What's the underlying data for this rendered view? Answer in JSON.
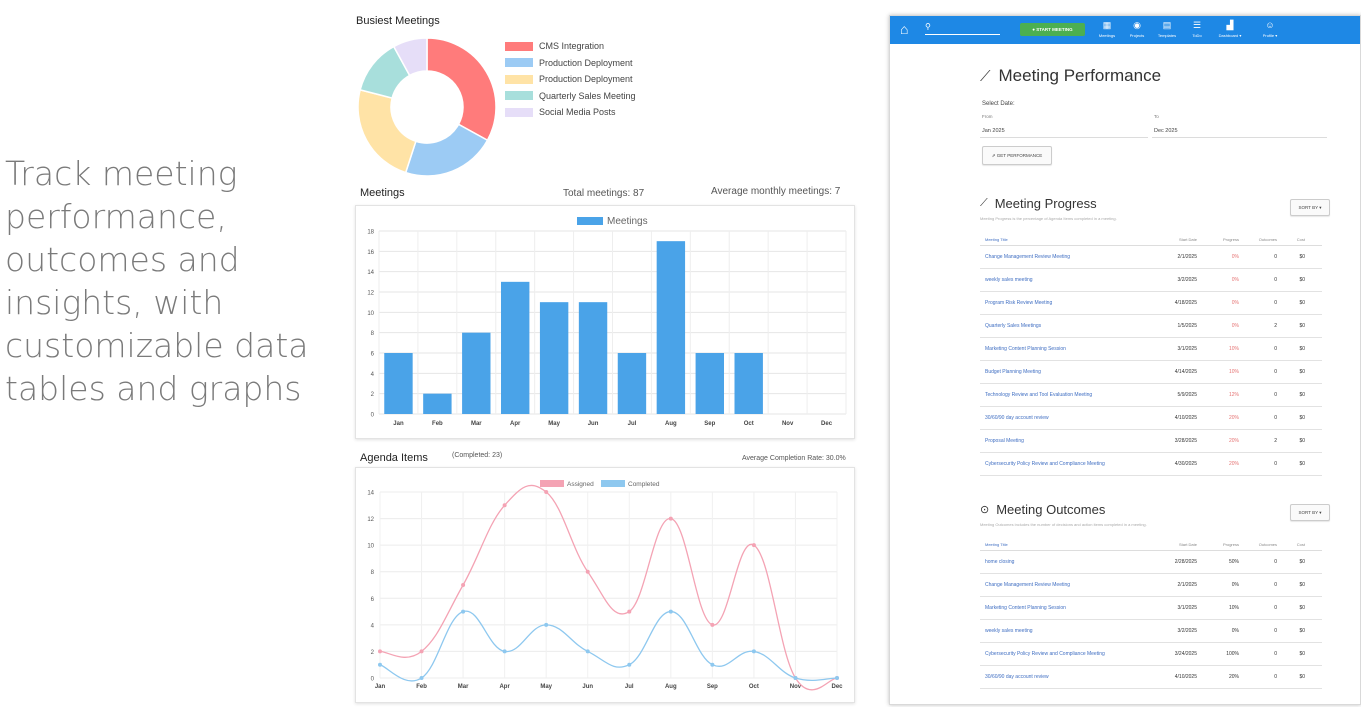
{
  "tagline": [
    "Track meeting",
    "performance,",
    "outcomes and",
    "insights, with",
    "customizable data",
    "tables and graphs"
  ],
  "busiest_title": "Busiest Meetings",
  "meetings_section": {
    "title": "Meetings",
    "total": "Total meetings: 87",
    "average": "Average monthly meetings: 7"
  },
  "agenda_section": {
    "title": "Agenda Items",
    "completed": "(Completed: 23)",
    "rate": "Average Completion Rate: 30.0%"
  },
  "chart_data": [
    {
      "type": "pie",
      "title": "Busiest Meetings",
      "labels": [
        "CMS Integration",
        "Production Deployment",
        "Production Deployment",
        "Quarterly Sales Meeting",
        "Social Media Posts"
      ],
      "values": [
        33,
        22,
        24,
        13,
        8
      ],
      "colors": [
        "#ff7b7b",
        "#9ccbf4",
        "#ffe3a6",
        "#a8dfdc",
        "#e6def8"
      ],
      "legend": "right"
    },
    {
      "type": "bar",
      "categories": [
        "Jan",
        "Feb",
        "Mar",
        "Apr",
        "May",
        "Jun",
        "Jul",
        "Aug",
        "Sep",
        "Oct",
        "Nov",
        "Dec"
      ],
      "series": [
        {
          "name": "Meetings",
          "values": [
            6,
            2,
            8,
            13,
            11,
            11,
            6,
            17,
            6,
            6,
            0,
            0
          ],
          "color": "#4aa3e8"
        }
      ],
      "ylim": [
        0,
        18
      ],
      "yticks": [
        0,
        2,
        4,
        6,
        8,
        10,
        12,
        14,
        16,
        18
      ],
      "grid": true,
      "legend": "top"
    },
    {
      "type": "line",
      "categories": [
        "Jan",
        "Feb",
        "Mar",
        "Apr",
        "May",
        "Jun",
        "Jul",
        "Aug",
        "Sep",
        "Oct",
        "Nov",
        "Dec"
      ],
      "series": [
        {
          "name": "Assigned",
          "values": [
            2,
            2,
            7,
            13,
            14,
            8,
            5,
            12,
            4,
            10,
            0,
            0
          ],
          "color": "#f4a3b4"
        },
        {
          "name": "Completed",
          "values": [
            1,
            0,
            5,
            2,
            4,
            2,
            1,
            5,
            1,
            2,
            0,
            0
          ],
          "color": "#8ec8ef"
        }
      ],
      "ylim": [
        0,
        14
      ],
      "yticks": [
        0,
        2,
        4,
        6,
        8,
        10,
        12,
        14
      ],
      "grid": true,
      "legend": "top"
    }
  ],
  "app": {
    "nav": {
      "start_meeting": "START MEETING",
      "items": [
        "Meetings",
        "Projects",
        "Templates",
        "ToDo",
        "Dashboard ▾",
        "Profile ▾"
      ]
    },
    "title": "Meeting Performance",
    "select_date": "Select Date:",
    "from_label": "From",
    "from_value": "Jan 2025",
    "to_label": "To",
    "to_value": "Dec 2025",
    "get_button": "GET PERFORMANCE",
    "progress": {
      "title": "Meeting Progress",
      "desc": "Meeting Progress is the percentage of Agenda Items completed in a meeting.",
      "sort": "SORT BY ▾",
      "headers": [
        "Meeting Title",
        "Start Date",
        "Progress",
        "Outcomes",
        "Cost"
      ],
      "rows": [
        [
          "Change Management Review Meeting",
          "2/1/2025",
          "0%",
          "0",
          "$0"
        ],
        [
          "weekly sales meeting",
          "3/2/2025",
          "0%",
          "0",
          "$0"
        ],
        [
          "Program Risk Review Meeting",
          "4/18/2025",
          "0%",
          "0",
          "$0"
        ],
        [
          "Quarterly Sales Meetings",
          "1/5/2025",
          "0%",
          "2",
          "$0"
        ],
        [
          "Marketing Content Planning Session",
          "3/1/2025",
          "10%",
          "0",
          "$0"
        ],
        [
          "Budget Planning Meeting",
          "4/14/2025",
          "10%",
          "0",
          "$0"
        ],
        [
          "Technology Review and Tool Evaluation Meeting",
          "5/9/2025",
          "12%",
          "0",
          "$0"
        ],
        [
          "30/60/90 day account review",
          "4/10/2025",
          "20%",
          "0",
          "$0"
        ],
        [
          "Proposal Meeting",
          "3/28/2025",
          "20%",
          "2",
          "$0"
        ],
        [
          "Cybersecurity Policy Review and Compliance Meeting",
          "4/30/2025",
          "20%",
          "0",
          "$0"
        ]
      ]
    },
    "outcomes": {
      "title": "Meeting Outcomes",
      "desc": "Meeting Outcomes includes the number of decisions and action items completed in a meeting.",
      "sort": "SORT BY ▾",
      "headers": [
        "Meeting Title",
        "Start Date",
        "Progress",
        "Outcomes",
        "Cost"
      ],
      "rows": [
        [
          "home closing",
          "2/28/2025",
          "50%",
          "0",
          "$0"
        ],
        [
          "Change Management Review Meeting",
          "2/1/2025",
          "0%",
          "0",
          "$0"
        ],
        [
          "Marketing Content Planning Session",
          "3/1/2025",
          "10%",
          "0",
          "$0"
        ],
        [
          "weekly sales meeting",
          "3/2/2025",
          "0%",
          "0",
          "$0"
        ],
        [
          "Cybersecurity Policy Review and Compliance Meeting",
          "3/24/2025",
          "100%",
          "0",
          "$0"
        ],
        [
          "30/60/90 day account review",
          "4/10/2025",
          "20%",
          "0",
          "$0"
        ]
      ]
    }
  }
}
